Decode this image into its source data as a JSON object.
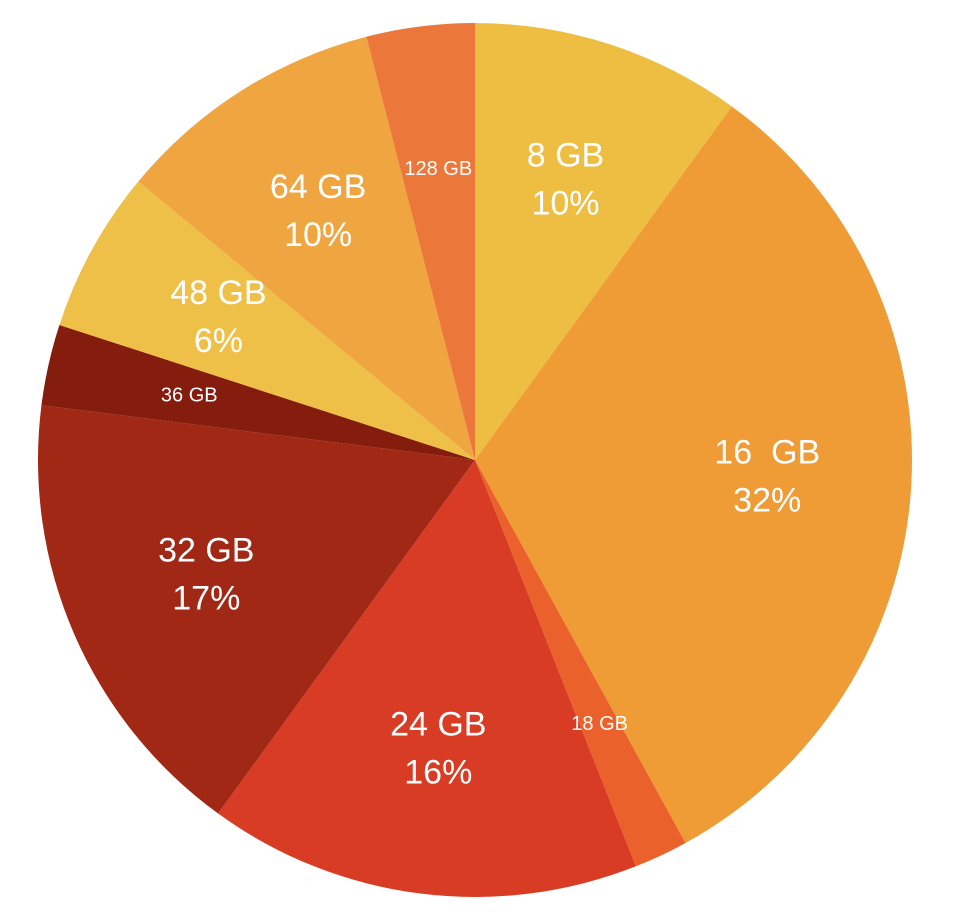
{
  "chart_data": {
    "type": "pie",
    "categories": [
      "8 GB",
      "16  GB",
      "18 GB",
      "24 GB",
      "32 GB",
      "36 GB",
      "48 GB",
      "64 GB",
      "128 GB"
    ],
    "values": [
      10,
      32,
      2,
      16,
      17,
      3,
      6,
      10,
      4
    ],
    "value_labels": [
      "10%",
      "32%",
      null,
      "16%",
      "17%",
      null,
      "6%",
      "10%",
      null
    ],
    "colors": [
      "#EEBE42",
      "#EF9B36",
      "#EA612C",
      "#D93C25",
      "#A22816",
      "#841D0E",
      "#EEC047",
      "#F0A640",
      "#EC773A"
    ]
  }
}
